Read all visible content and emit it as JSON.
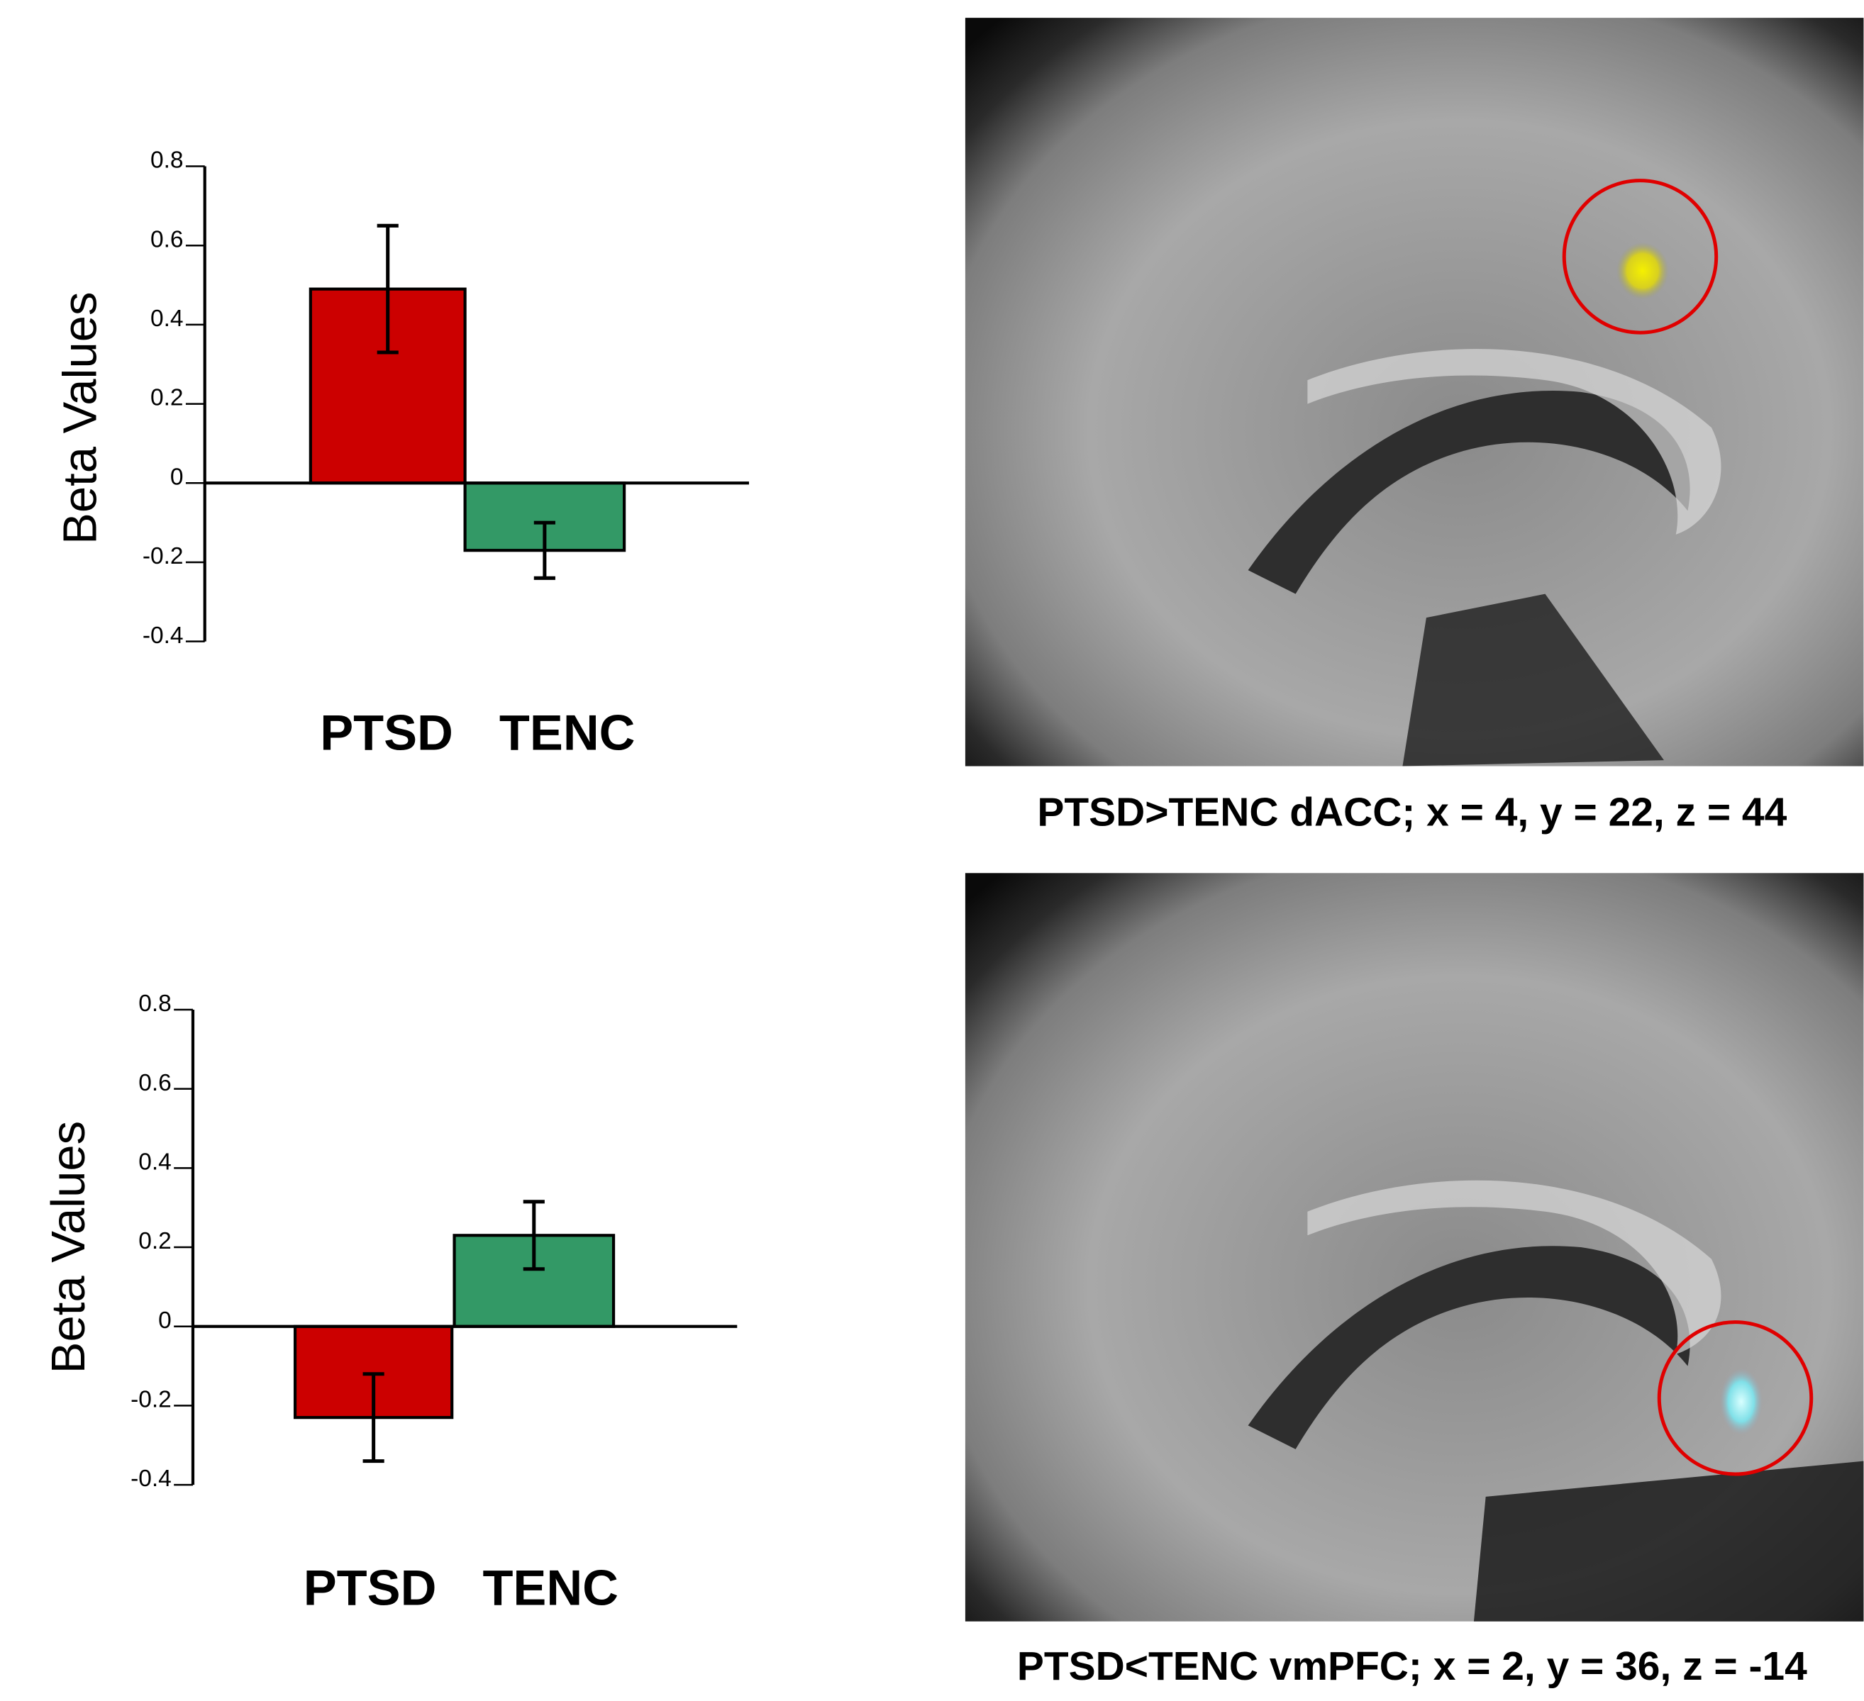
{
  "chart_data": [
    {
      "type": "bar",
      "ylabel": "Beta Values",
      "categories": [
        "PTSD",
        "TENC"
      ],
      "values": [
        0.49,
        -0.17
      ],
      "errors": [
        0.16,
        0.07
      ],
      "colors": [
        "#cc0000",
        "#339966"
      ],
      "ylim": [
        -0.4,
        0.8
      ],
      "yticks": [
        0.8,
        0.6,
        0.4,
        0.2,
        0,
        -0.2,
        -0.4
      ],
      "caption": "PTSD>TENC  dACC; x = 4, y = 22, z = 44"
    },
    {
      "type": "bar",
      "ylabel": "Beta Values",
      "categories": [
        "PTSD",
        "TENC"
      ],
      "values": [
        -0.23,
        0.23
      ],
      "errors": [
        0.11,
        0.085
      ],
      "colors": [
        "#cc0000",
        "#339966"
      ],
      "ylim": [
        -0.4,
        0.8
      ],
      "yticks": [
        0.8,
        0.6,
        0.4,
        0.2,
        0,
        -0.2,
        -0.4
      ],
      "caption": "PTSD<TENC  vmPFC; x = 2, y = 36, z = -14"
    }
  ]
}
